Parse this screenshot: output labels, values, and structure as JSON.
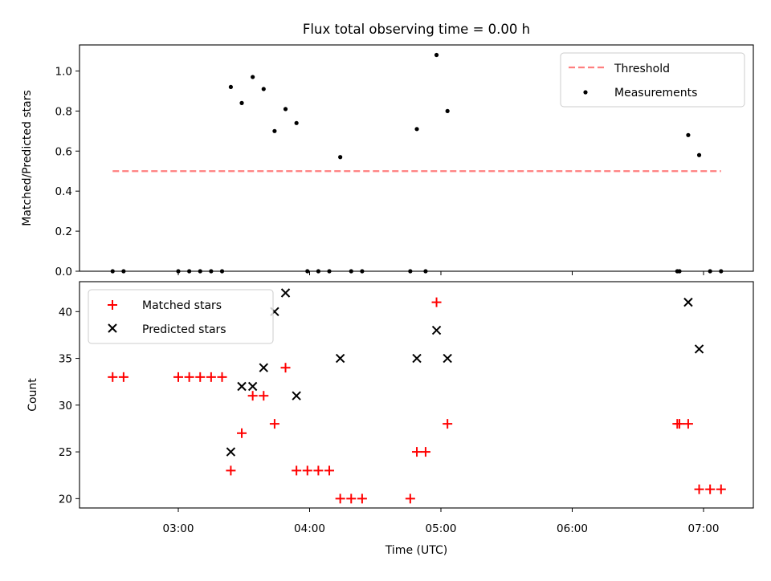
{
  "chart_data": {
    "title": "Flux total observing time = 0.00 h",
    "xlabel": "Time (UTC)",
    "x_ticks": [
      "03:00",
      "04:00",
      "05:00",
      "06:00",
      "07:00"
    ],
    "colors": {
      "threshold": "#ff7f7f",
      "measurements": "#000000",
      "matched": "#ff0000",
      "predicted": "#000000"
    },
    "panels": [
      {
        "type": "scatter",
        "ylabel": "Matched/Predicted stars",
        "ylim": [
          0,
          1.13
        ],
        "y_ticks": [
          "0.0",
          "0.2",
          "0.4",
          "0.6",
          "0.8",
          "1.0"
        ],
        "legend": {
          "placement": "top-right",
          "entries": [
            "Threshold",
            "Measurements"
          ]
        },
        "threshold": {
          "name": "Threshold",
          "value": 0.5,
          "x_range": [
            "02:30",
            "07:08"
          ]
        },
        "measurements": {
          "name": "Measurements",
          "points": [
            [
              "02:30",
              0
            ],
            [
              "02:35",
              0
            ],
            [
              "03:00",
              0
            ],
            [
              "03:05",
              0
            ],
            [
              "03:10",
              0
            ],
            [
              "03:15",
              0
            ],
            [
              "03:20",
              0
            ],
            [
              "03:24",
              0.92
            ],
            [
              "03:29",
              0.84
            ],
            [
              "03:34",
              0.97
            ],
            [
              "03:39",
              0.91
            ],
            [
              "03:44",
              0.7
            ],
            [
              "03:49",
              0.81
            ],
            [
              "03:54",
              0.74
            ],
            [
              "03:59",
              0
            ],
            [
              "04:04",
              0
            ],
            [
              "04:09",
              0
            ],
            [
              "04:14",
              0.57
            ],
            [
              "04:19",
              0
            ],
            [
              "04:24",
              0
            ],
            [
              "04:46",
              0
            ],
            [
              "04:49",
              0.71
            ],
            [
              "04:53",
              0
            ],
            [
              "04:58",
              1.08
            ],
            [
              "05:03",
              0.8
            ],
            [
              "06:48",
              0
            ],
            [
              "06:49",
              0
            ],
            [
              "06:53",
              0.68
            ],
            [
              "06:58",
              0.58
            ],
            [
              "07:03",
              0
            ],
            [
              "07:08",
              0
            ]
          ]
        }
      },
      {
        "type": "scatter",
        "ylabel": "Count",
        "ylim": [
          19,
          43.2
        ],
        "y_ticks": [
          "20",
          "25",
          "30",
          "35",
          "40"
        ],
        "legend": {
          "placement": "top-left",
          "entries": [
            "Matched stars",
            "Predicted stars"
          ]
        },
        "matched": {
          "name": "Matched stars",
          "points": [
            [
              "02:30",
              33
            ],
            [
              "02:35",
              33
            ],
            [
              "03:00",
              33
            ],
            [
              "03:05",
              33
            ],
            [
              "03:10",
              33
            ],
            [
              "03:15",
              33
            ],
            [
              "03:20",
              33
            ],
            [
              "03:24",
              23
            ],
            [
              "03:29",
              27
            ],
            [
              "03:34",
              31
            ],
            [
              "03:39",
              31
            ],
            [
              "03:44",
              28
            ],
            [
              "03:49",
              34
            ],
            [
              "03:54",
              23
            ],
            [
              "03:59",
              23
            ],
            [
              "04:04",
              23
            ],
            [
              "04:09",
              23
            ],
            [
              "04:14",
              20
            ],
            [
              "04:19",
              20
            ],
            [
              "04:24",
              20
            ],
            [
              "04:46",
              20
            ],
            [
              "04:49",
              25
            ],
            [
              "04:53",
              25
            ],
            [
              "04:58",
              41
            ],
            [
              "05:03",
              28
            ],
            [
              "06:48",
              28
            ],
            [
              "06:49",
              28
            ],
            [
              "06:53",
              28
            ],
            [
              "06:58",
              21
            ],
            [
              "07:03",
              21
            ],
            [
              "07:08",
              21
            ]
          ]
        },
        "predicted": {
          "name": "Predicted stars",
          "points": [
            [
              "03:24",
              25
            ],
            [
              "03:29",
              32
            ],
            [
              "03:34",
              32
            ],
            [
              "03:39",
              34
            ],
            [
              "03:44",
              40
            ],
            [
              "03:49",
              42
            ],
            [
              "03:54",
              31
            ],
            [
              "04:14",
              35
            ],
            [
              "04:49",
              35
            ],
            [
              "04:58",
              38
            ],
            [
              "05:03",
              35
            ],
            [
              "06:53",
              41
            ],
            [
              "06:58",
              36
            ]
          ]
        }
      }
    ]
  }
}
